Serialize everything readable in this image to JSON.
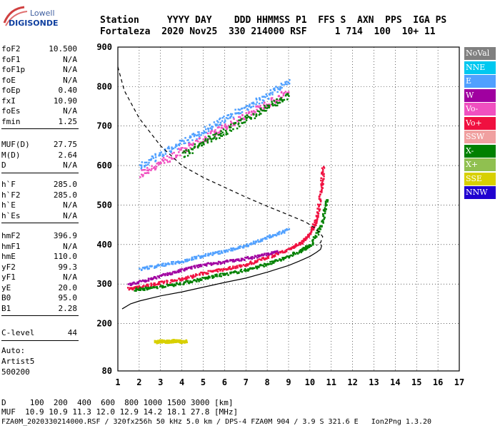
{
  "logo": {
    "line1": "Lowell",
    "line2": "DIGISONDE"
  },
  "header": {
    "labels": "Station     YYYY DAY    DDD HHMMSS P1  FFS S  AXN  PPS  IGA PS",
    "values": "Fortaleza  2020 Nov25  330 214000 RSF     1 714  100  10+ 11"
  },
  "params": {
    "group1": [
      {
        "name": "foF2",
        "value": "10.500"
      },
      {
        "name": "foF1",
        "value": "N/A"
      },
      {
        "name": "foF1p",
        "value": "N/A"
      },
      {
        "name": "foE",
        "value": "N/A"
      },
      {
        "name": "foEp",
        "value": "0.40"
      },
      {
        "name": "fxI",
        "value": "10.90"
      },
      {
        "name": "foEs",
        "value": "N/A"
      },
      {
        "name": "fmin",
        "value": "1.25"
      }
    ],
    "group2": [
      {
        "name": "MUF(D)",
        "value": "27.75"
      },
      {
        "name": "M(D)",
        "value": "2.64"
      },
      {
        "name": "D",
        "value": "N/A"
      }
    ],
    "group3": [
      {
        "name": "h`F",
        "value": "285.0"
      },
      {
        "name": "h`F2",
        "value": "285.0"
      },
      {
        "name": "h`E",
        "value": "N/A"
      },
      {
        "name": "h`Es",
        "value": "N/A"
      }
    ],
    "group4": [
      {
        "name": "hmF2",
        "value": "396.9"
      },
      {
        "name": "hmF1",
        "value": "N/A"
      },
      {
        "name": "hmE",
        "value": "110.0"
      },
      {
        "name": "yF2",
        "value": "99.3"
      },
      {
        "name": "yF1",
        "value": "N/A"
      },
      {
        "name": "yE",
        "value": "20.0"
      },
      {
        "name": "B0",
        "value": "95.0"
      },
      {
        "name": "B1",
        "value": "2.28"
      }
    ],
    "group5": [
      {
        "name": "C-level",
        "value": "44"
      }
    ]
  },
  "autoscale": {
    "line1": "Auto:",
    "line2": "Artist5",
    "line3": "500200"
  },
  "legend": [
    {
      "label": "NoVal",
      "color": "#808080"
    },
    {
      "label": "NNE",
      "color": "#00c8f0"
    },
    {
      "label": "E",
      "color": "#50a0ff"
    },
    {
      "label": "W",
      "color": "#a000a0"
    },
    {
      "label": "Vo-",
      "color": "#f050c0"
    },
    {
      "label": "Vo+",
      "color": "#f01040"
    },
    {
      "label": "SSW",
      "color": "#f0a0a0"
    },
    {
      "label": "X-",
      "color": "#008000"
    },
    {
      "label": "X+",
      "color": "#90c050"
    },
    {
      "label": "SSE",
      "color": "#d8d000"
    },
    {
      "label": "NNW",
      "color": "#2000d0"
    }
  ],
  "footer": {
    "line1": "D     100  200  400  600  800 1000 1500 3000 [km]",
    "line2": "MUF  10.9 10.9 11.3 12.0 12.9 14.2 18.1 27.8 [MHz]",
    "line3": "FZA0M_2020330214000.RSF / 320fx256h 50 kHz 5.0 km / DPS-4 FZA0M 904 / 3.9 S 321.6 E   Ion2Png 1.3.20"
  },
  "chart_data": {
    "type": "scatter",
    "xlabel": "",
    "ylabel": "",
    "xlim": [
      1,
      17
    ],
    "ylim": [
      80,
      900
    ],
    "x_ticks": [
      1,
      2,
      3,
      4,
      5,
      6,
      7,
      8,
      9,
      10,
      11,
      12,
      13,
      14,
      15,
      16,
      17
    ],
    "y_ticks": [
      80,
      200,
      300,
      400,
      500,
      600,
      700,
      800,
      900
    ],
    "grid": true,
    "series": [
      {
        "name": "",
        "style": "solid",
        "x": [
          1.2,
          1.6,
          2.0,
          3.0,
          4.0,
          5.0,
          6.0,
          7.0,
          8.0,
          9.0,
          9.5,
          10.0,
          10.3,
          10.5,
          10.55,
          10.5
        ],
        "y": [
          237,
          250,
          257,
          270,
          280,
          292,
          304,
          315,
          330,
          347,
          358,
          370,
          380,
          388,
          397,
          400
        ]
      },
      {
        "name": "",
        "style": "dashed",
        "x": [
          1.0,
          1.3,
          2.0,
          3.0,
          4.0,
          5.0,
          6.0,
          7.0,
          8.0,
          9.0,
          9.8,
          10.3,
          10.6,
          10.5,
          10.3
        ],
        "y": [
          850,
          790,
          720,
          650,
          600,
          570,
          545,
          520,
          497,
          475,
          457,
          440,
          420,
          405,
          398
        ]
      }
    ],
    "traces": [
      {
        "name": "F-layer O trace (Vo+)",
        "color": "#f01040",
        "x": [
          1.5,
          2,
          3,
          4,
          5,
          6,
          7,
          8,
          9,
          9.5,
          10,
          10.3,
          10.5,
          10.6
        ],
        "y": [
          290,
          295,
          305,
          315,
          330,
          340,
          352,
          370,
          390,
          405,
          430,
          470,
          540,
          600
        ]
      },
      {
        "name": "F-layer X trace (X-)",
        "color": "#008000",
        "x": [
          1.8,
          2.5,
          3.5,
          4.5,
          5.5,
          6.5,
          7.5,
          8.5,
          9.5,
          10,
          10.5,
          10.8
        ],
        "y": [
          288,
          292,
          300,
          310,
          322,
          332,
          345,
          362,
          385,
          400,
          450,
          520
        ]
      },
      {
        "name": "F-layer W trace",
        "color": "#a000a0",
        "x": [
          1.5,
          2.5,
          3.5,
          4.5,
          5.5,
          6.5,
          7.5,
          8.5
        ],
        "y": [
          300,
          315,
          330,
          345,
          355,
          362,
          372,
          385
        ]
      },
      {
        "name": "F-layer E trace",
        "color": "#50a0ff",
        "x": [
          2,
          3,
          4,
          5,
          6,
          7,
          8,
          9
        ],
        "y": [
          340,
          350,
          360,
          375,
          385,
          400,
          420,
          440
        ]
      },
      {
        "name": "Multi-hop E",
        "color": "#50a0ff",
        "x": [
          2,
          3,
          4,
          5,
          6,
          7,
          8,
          9
        ],
        "y": [
          600,
          630,
          660,
          690,
          720,
          750,
          780,
          820
        ]
      },
      {
        "name": "Multi-hop Vo-",
        "color": "#f050c0",
        "x": [
          2,
          3,
          4,
          5,
          6,
          7,
          8,
          9
        ],
        "y": [
          580,
          610,
          640,
          670,
          700,
          730,
          760,
          790
        ]
      },
      {
        "name": "Multi-hop X-",
        "color": "#008000",
        "x": [
          4,
          5,
          6,
          7,
          8,
          9
        ],
        "y": [
          630,
          660,
          690,
          720,
          750,
          780
        ]
      },
      {
        "name": "SSE scatter",
        "color": "#d8d000",
        "x": [
          2.7,
          3,
          3.3,
          3.6,
          3.9,
          4.2
        ],
        "y": [
          155,
          157,
          156,
          158,
          156,
          157
        ]
      }
    ]
  }
}
